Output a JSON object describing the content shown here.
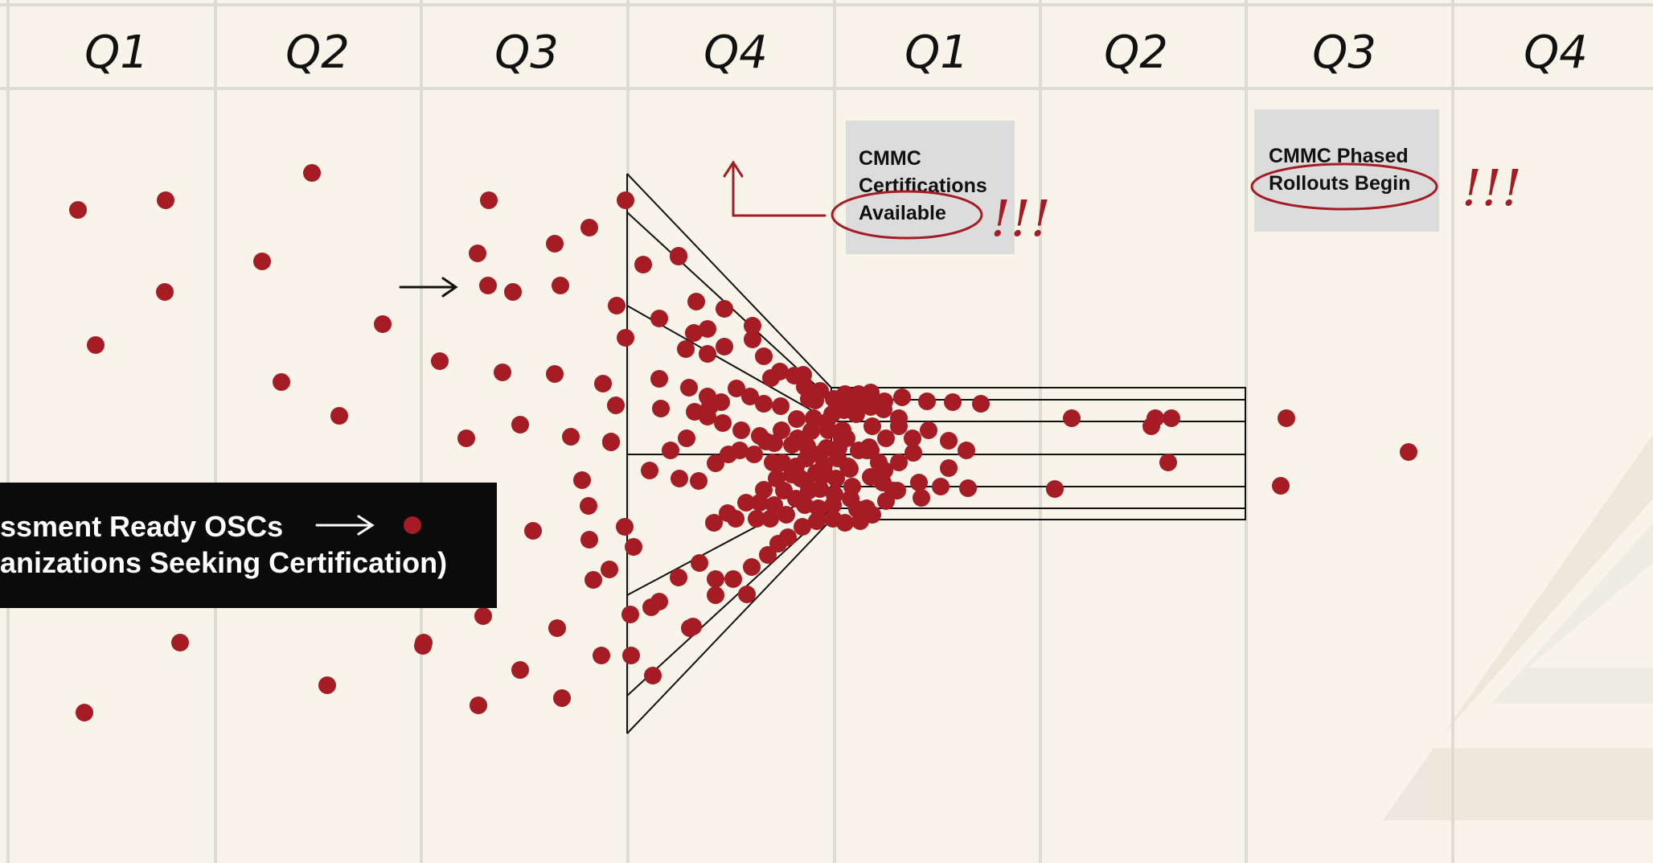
{
  "quarters": [
    "Q1",
    "Q2",
    "Q3",
    "Q4",
    "Q1",
    "Q2",
    "Q3",
    "Q4"
  ],
  "callout_certifications": {
    "lines": [
      "CMMC",
      "Certifications",
      "Available"
    ],
    "emphasis": "!!!"
  },
  "callout_rollouts": {
    "lines": [
      "CMMC Phased",
      "Rollouts Begin"
    ],
    "emphasis": "!!!"
  },
  "legend": {
    "line1": "ssment Ready OSCs",
    "line2": "anizations Seeking Certification)",
    "marker_color": "#a51c24"
  },
  "colors": {
    "background": "#f8f4e9",
    "grid": "#dcdcd2",
    "dot": "#a51c24",
    "callout_box": "#dcdcdc",
    "legend_box": "#0b0b0c",
    "ink": "#111111"
  },
  "icons": [
    "arrow-right-icon",
    "corner-arrow-up-icon",
    "logo-triangle-watermark"
  ]
}
